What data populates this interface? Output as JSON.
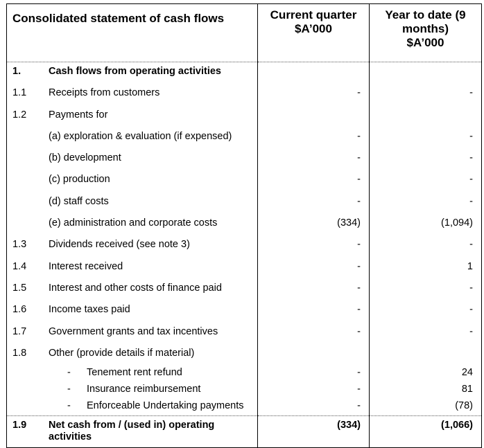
{
  "header": {
    "title": "Consolidated statement of cash flows",
    "col_current": [
      "Current quarter",
      "$A’000"
    ],
    "col_ytd": [
      "Year to date (9",
      "months)",
      "$A’000"
    ]
  },
  "rows": [
    {
      "num": "1.",
      "label": "Cash flows from operating activities",
      "cq": "",
      "ytd": "",
      "bold": true,
      "type": "section"
    },
    {
      "num": "1.1",
      "label": "Receipts from customers",
      "cq": "-",
      "ytd": "-",
      "type": "main"
    },
    {
      "num": "1.2",
      "label": "Payments for",
      "cq": "",
      "ytd": "",
      "type": "main"
    },
    {
      "num": "",
      "label": "(a)  exploration & evaluation (if expensed)",
      "cq": "-",
      "ytd": "-",
      "type": "sub"
    },
    {
      "num": "",
      "label": "(b)  development",
      "cq": "-",
      "ytd": "-",
      "type": "sub"
    },
    {
      "num": "",
      "label": "(c)  production",
      "cq": "-",
      "ytd": "-",
      "type": "sub"
    },
    {
      "num": "",
      "label": "(d)  staff costs",
      "cq": "-",
      "ytd": "-",
      "type": "sub"
    },
    {
      "num": "",
      "label": "(e)  administration and corporate costs",
      "cq": "(334)",
      "ytd": "(1,094)",
      "type": "sub"
    },
    {
      "num": "1.3",
      "label": "Dividends received (see note 3)",
      "cq": "-",
      "ytd": "-",
      "type": "main"
    },
    {
      "num": "1.4",
      "label": "Interest received",
      "cq": "-",
      "ytd": "1",
      "type": "main"
    },
    {
      "num": "1.5",
      "label": "Interest and other costs of finance paid",
      "cq": "-",
      "ytd": "-",
      "type": "main"
    },
    {
      "num": "1.6",
      "label": "Income taxes paid",
      "cq": "-",
      "ytd": "-",
      "type": "main"
    },
    {
      "num": "1.7",
      "label": "Government grants and tax incentives",
      "cq": "-",
      "ytd": "-",
      "type": "main"
    },
    {
      "num": "1.8",
      "label": "Other (provide details if material)",
      "cq": "",
      "ytd": "",
      "type": "main"
    },
    {
      "num": "",
      "label": "Tenement rent refund",
      "cq": "-",
      "ytd": "24",
      "type": "bullet"
    },
    {
      "num": "",
      "label": "Insurance reimbursement",
      "cq": "-",
      "ytd": "81",
      "type": "bullet"
    },
    {
      "num": "",
      "label": "Enforceable Undertaking payments",
      "cq": "-",
      "ytd": "(78)",
      "type": "bullet"
    }
  ],
  "total": {
    "num": "1.9",
    "label": "Net cash from / (used in) operating activities",
    "cq": "(334)",
    "ytd": "(1,066)"
  },
  "bullet_marker": "-"
}
